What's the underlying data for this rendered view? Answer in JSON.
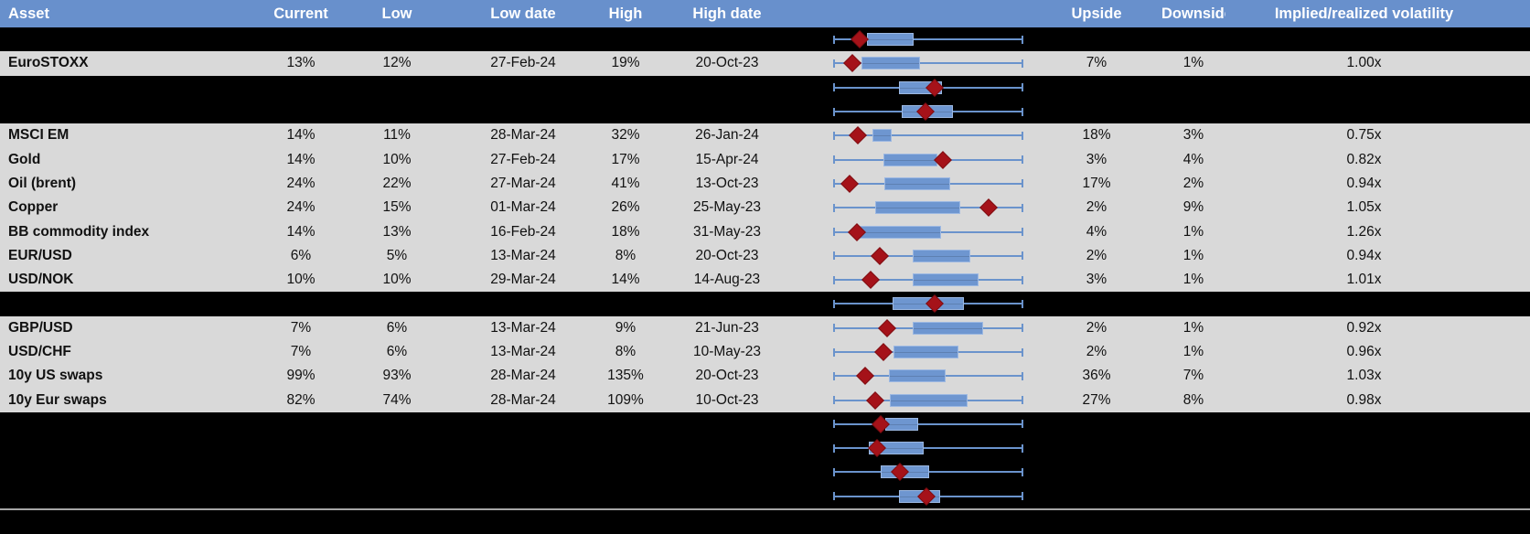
{
  "header": {
    "asset": "Asset",
    "current": "Current",
    "low": "Low",
    "low_date": "Low date",
    "high": "High",
    "high_date": "High date",
    "upside": "Upside",
    "downside": "Downside",
    "ivrv": "Implied/realized volatility"
  },
  "colors": {
    "header-bg": "#6890CC",
    "row-bg": "#D9D9D9",
    "hidden-bg": "#000000",
    "whisker": "#6A93CC",
    "box-fill": "#6E96D0",
    "box-border": "#9CB8E2",
    "diamond-fill": "#A51219",
    "diamond-border": "#7E0D11",
    "footer-line": "#A6A6A6",
    "header-text": "#FFFFFF",
    "cell-text": "#111111"
  },
  "rows": [
    {
      "type": "hidden",
      "plot": {
        "box": [
          0.173,
          0.411
        ],
        "diamond": 0.136
      }
    },
    {
      "type": "data",
      "asset": "EuroSTOXX",
      "current": "13%",
      "low": "12%",
      "low_date": "27-Feb-24",
      "high": "19%",
      "high_date": "20-Oct-23",
      "upside": "7%",
      "downside": "1%",
      "ivrv": "1.00x",
      "plot": {
        "box": [
          0.147,
          0.448
        ],
        "diamond": 0.098
      }
    },
    {
      "type": "hidden",
      "plot": {
        "box": [
          0.346,
          0.565
        ],
        "diamond": 0.535
      }
    },
    {
      "type": "hidden",
      "plot": {
        "box": [
          0.358,
          0.621
        ],
        "diamond": 0.484
      }
    },
    {
      "type": "data",
      "asset": "MSCI EM",
      "current": "14%",
      "low": "11%",
      "low_date": "28-Mar-24",
      "high": "32%",
      "high_date": "26-Jan-24",
      "upside": "18%",
      "downside": "3%",
      "ivrv": "0.75x",
      "plot": {
        "box": [
          0.205,
          0.295
        ],
        "diamond": 0.125
      }
    },
    {
      "type": "data",
      "asset": "Gold",
      "current": "14%",
      "low": "10%",
      "low_date": "27-Feb-24",
      "high": "17%",
      "high_date": "15-Apr-24",
      "upside": "3%",
      "downside": "4%",
      "ivrv": "0.82x",
      "plot": {
        "box": [
          0.262,
          0.54
        ],
        "diamond": 0.576
      }
    },
    {
      "type": "data",
      "asset": "Oil (brent)",
      "current": "24%",
      "low": "22%",
      "low_date": "27-Mar-24",
      "high": "41%",
      "high_date": "13-Oct-23",
      "upside": "17%",
      "downside": "2%",
      "ivrv": "0.94x",
      "plot": {
        "box": [
          0.265,
          0.605
        ],
        "diamond": 0.084
      }
    },
    {
      "type": "data",
      "asset": "Copper",
      "current": "24%",
      "low": "15%",
      "low_date": "01-Mar-24",
      "high": "26%",
      "high_date": "25-May-23",
      "upside": "2%",
      "downside": "9%",
      "ivrv": "1.05x",
      "plot": {
        "box": [
          0.22,
          0.662
        ],
        "diamond": 0.819
      }
    },
    {
      "type": "data",
      "asset": "BB commodity index",
      "current": "14%",
      "low": "13%",
      "low_date": "16-Feb-24",
      "high": "18%",
      "high_date": "31-May-23",
      "upside": "4%",
      "downside": "1%",
      "ivrv": "1.26x",
      "plot": {
        "box": [
          0.128,
          0.557
        ],
        "diamond": 0.12
      }
    },
    {
      "type": "data",
      "asset": "EUR/USD",
      "current": "6%",
      "low": "5%",
      "low_date": "13-Mar-24",
      "high": "8%",
      "high_date": "20-Oct-23",
      "upside": "2%",
      "downside": "1%",
      "ivrv": "0.94x",
      "plot": {
        "box": [
          0.419,
          0.713
        ],
        "diamond": 0.243
      }
    },
    {
      "type": "data",
      "asset": "USD/NOK",
      "current": "10%",
      "low": "10%",
      "low_date": "29-Mar-24",
      "high": "14%",
      "high_date": "14-Aug-23",
      "upside": "3%",
      "downside": "1%",
      "ivrv": "1.01x",
      "plot": {
        "box": [
          0.416,
          0.759
        ],
        "diamond": 0.193
      }
    },
    {
      "type": "hidden",
      "plot": {
        "box": [
          0.311,
          0.678
        ],
        "diamond": 0.533
      }
    },
    {
      "type": "data",
      "asset": "GBP/USD",
      "current": "7%",
      "low": "6%",
      "low_date": "13-Mar-24",
      "high": "9%",
      "high_date": "21-Jun-23",
      "upside": "2%",
      "downside": "1%",
      "ivrv": "0.92x",
      "plot": {
        "box": [
          0.416,
          0.783
        ],
        "diamond": 0.282
      }
    },
    {
      "type": "data",
      "asset": "USD/CHF",
      "current": "7%",
      "low": "6%",
      "low_date": "13-Mar-24",
      "high": "8%",
      "high_date": "10-May-23",
      "upside": "2%",
      "downside": "1%",
      "ivrv": "0.96x",
      "plot": {
        "box": [
          0.314,
          0.65
        ],
        "diamond": 0.262
      }
    },
    {
      "type": "data",
      "asset": "10y US swaps",
      "current": "99%",
      "low": "93%",
      "low_date": "28-Mar-24",
      "high": "135%",
      "high_date": "20-Oct-23",
      "upside": "36%",
      "downside": "7%",
      "ivrv": "1.03x",
      "plot": {
        "box": [
          0.293,
          0.584
        ],
        "diamond": 0.165
      }
    },
    {
      "type": "data",
      "asset": "10y Eur swaps",
      "current": "82%",
      "low": "74%",
      "low_date": "28-Mar-24",
      "high": "109%",
      "high_date": "10-Oct-23",
      "upside": "27%",
      "downside": "8%",
      "ivrv": "0.98x",
      "plot": {
        "box": [
          0.295,
          0.699
        ],
        "diamond": 0.22
      }
    },
    {
      "type": "hidden",
      "plot": {
        "box": [
          0.273,
          0.435
        ],
        "diamond": 0.246
      }
    },
    {
      "type": "hidden",
      "plot": {
        "box": [
          0.184,
          0.467
        ],
        "diamond": 0.23
      }
    },
    {
      "type": "hidden",
      "plot": {
        "box": [
          0.246,
          0.497
        ],
        "diamond": 0.35
      }
    },
    {
      "type": "hidden",
      "plot": {
        "box": [
          0.346,
          0.553
        ],
        "diamond": 0.492
      }
    }
  ]
}
